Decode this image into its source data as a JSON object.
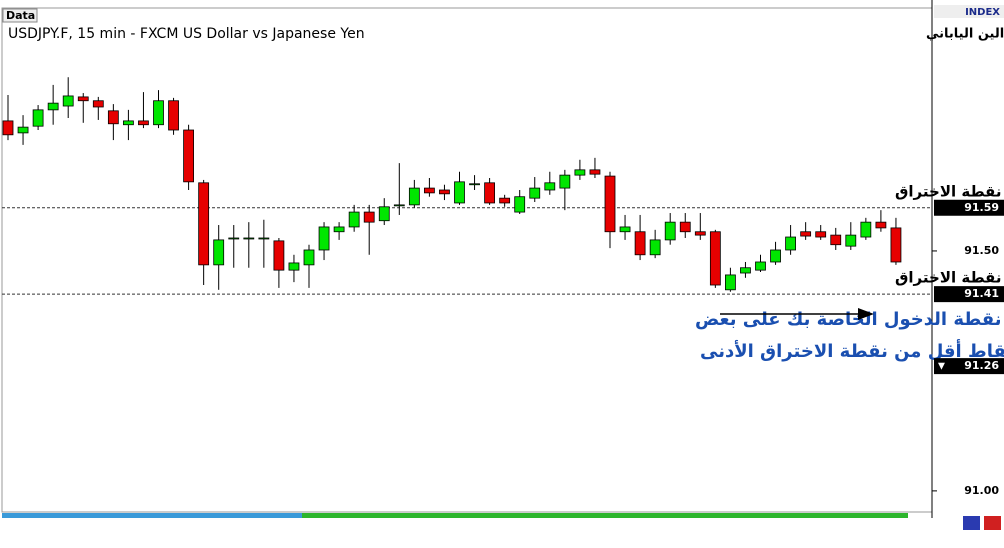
{
  "chart_data": {
    "type": "candlestick",
    "tag": "Data",
    "title": "USDJPY.F, 15 min - FXCM US Dollar vs Japanese Yen",
    "subtitle": "الدولار الأمريكي مقابل الين الياباني",
    "axis_label": "INDEX",
    "up_color": "#00e600",
    "down_color": "#e60000",
    "ylim": [
      90.956,
      92.0
    ],
    "yticks": [
      {
        "value": 91.0,
        "label": "91.00"
      },
      {
        "value": 91.5,
        "label": "91.50"
      }
    ],
    "levels": [
      {
        "value": 91.59,
        "label": "91.59",
        "annotation": "نقطة الاختراق"
      },
      {
        "value": 91.41,
        "label": "91.41",
        "annotation": "نقطة الاختراق"
      }
    ],
    "current": {
      "value": 91.26,
      "label": "91.26",
      "marker": "▼"
    },
    "note": [
      "حدد نقطة الدخول الخاصة بك على بعض",
      "نقاط أقل من نقطة الاختراق الأدنى"
    ],
    "open": [
      91.771,
      91.746,
      91.76,
      91.794,
      91.802,
      91.821,
      91.813,
      91.792,
      91.763,
      91.771,
      91.763,
      91.813,
      91.752,
      91.642,
      91.471,
      91.527,
      91.527,
      91.527,
      91.521,
      91.46,
      91.471,
      91.502,
      91.54,
      91.55,
      91.581,
      91.563,
      91.596,
      91.596,
      91.631,
      91.627,
      91.6,
      91.64,
      91.642,
      91.61,
      91.581,
      91.61,
      91.627,
      91.631,
      91.658,
      91.669,
      91.656,
      91.54,
      91.54,
      91.492,
      91.523,
      91.56,
      91.54,
      91.54,
      91.419,
      91.454,
      91.46,
      91.477,
      91.502,
      91.54,
      91.54,
      91.533,
      91.51,
      91.529,
      91.56,
      91.548
    ],
    "high": [
      91.825,
      91.783,
      91.804,
      91.846,
      91.862,
      91.829,
      91.821,
      91.806,
      91.794,
      91.831,
      91.835,
      91.819,
      91.763,
      91.648,
      91.554,
      91.554,
      91.56,
      91.565,
      91.527,
      91.492,
      91.513,
      91.56,
      91.56,
      91.596,
      91.596,
      91.61,
      91.683,
      91.648,
      91.652,
      91.638,
      91.665,
      91.658,
      91.652,
      91.617,
      91.627,
      91.654,
      91.665,
      91.669,
      91.69,
      91.694,
      91.665,
      91.575,
      91.575,
      91.544,
      91.579,
      91.579,
      91.579,
      91.544,
      91.465,
      91.477,
      91.492,
      91.519,
      91.554,
      91.56,
      91.554,
      91.548,
      91.56,
      91.569,
      91.585,
      91.569
    ],
    "low": [
      91.731,
      91.721,
      91.752,
      91.763,
      91.777,
      91.767,
      91.773,
      91.731,
      91.731,
      91.756,
      91.756,
      91.742,
      91.627,
      91.429,
      91.419,
      91.465,
      91.465,
      91.465,
      91.423,
      91.435,
      91.423,
      91.481,
      91.523,
      91.54,
      91.492,
      91.554,
      91.575,
      91.59,
      91.613,
      91.606,
      91.596,
      91.627,
      91.596,
      91.592,
      91.577,
      91.602,
      91.617,
      91.585,
      91.648,
      91.652,
      91.506,
      91.523,
      91.481,
      91.485,
      91.513,
      91.527,
      91.523,
      91.423,
      91.415,
      91.444,
      91.456,
      91.471,
      91.492,
      91.523,
      91.523,
      91.502,
      91.502,
      91.523,
      91.54,
      91.471
    ],
    "close": [
      91.742,
      91.758,
      91.794,
      91.808,
      91.823,
      91.813,
      91.8,
      91.765,
      91.771,
      91.763,
      91.813,
      91.752,
      91.644,
      91.471,
      91.523,
      91.527,
      91.527,
      91.527,
      91.46,
      91.475,
      91.502,
      91.55,
      91.55,
      91.581,
      91.56,
      91.592,
      91.596,
      91.631,
      91.621,
      91.619,
      91.644,
      91.64,
      91.6,
      91.6,
      91.613,
      91.631,
      91.642,
      91.658,
      91.669,
      91.66,
      91.54,
      91.55,
      91.492,
      91.523,
      91.56,
      91.54,
      91.533,
      91.429,
      91.45,
      91.465,
      91.477,
      91.502,
      91.529,
      91.531,
      91.529,
      91.513,
      91.533,
      91.56,
      91.548,
      91.477
    ]
  }
}
